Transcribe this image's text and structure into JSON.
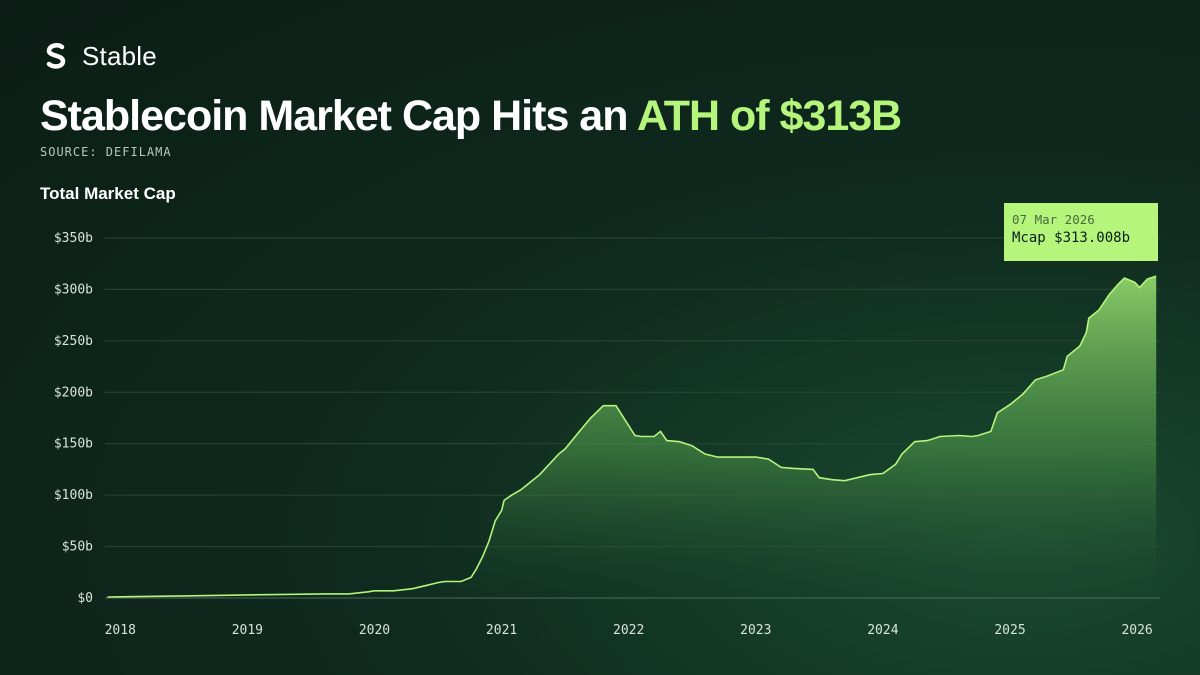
{
  "brand": {
    "name": "Stable",
    "icon": "stable-s-logo-icon"
  },
  "headline": {
    "prefix": "Stablecoin Market Cap Hits an ",
    "accent": "ATH of $313B"
  },
  "source": "SOURCE: DEFILAMA",
  "colors": {
    "accent": "#b5f57c",
    "background": "#0f2a1e",
    "line": "#b5f57c"
  },
  "tooltip": {
    "date": "07 Mar 2026",
    "value": "Mcap $313.008b"
  },
  "chart_data": {
    "type": "area",
    "title": "Total Market Cap",
    "xlabel": "",
    "ylabel": "",
    "ylim": [
      0,
      350
    ],
    "xlim": [
      2017.88,
      2026.18
    ],
    "y_ticks": [
      0,
      50,
      100,
      150,
      200,
      250,
      300,
      350
    ],
    "y_tick_labels": [
      "$0",
      "$50b",
      "$100b",
      "$150b",
      "$200b",
      "$250b",
      "$300b",
      "$350b"
    ],
    "x_ticks": [
      2018,
      2019,
      2020,
      2021,
      2022,
      2023,
      2024,
      2025,
      2026
    ],
    "x_tick_labels": [
      "2018",
      "2019",
      "2020",
      "2021",
      "2022",
      "2023",
      "2024",
      "2025",
      "2026"
    ],
    "grid": true,
    "series": [
      {
        "x": [
          2017.9,
          2018.5,
          2019.0,
          2019.6,
          2019.8,
          2019.95,
          2020.0,
          2020.15,
          2020.3,
          2020.4,
          2020.5,
          2020.55,
          2020.62,
          2020.68,
          2020.72,
          2020.76,
          2020.8,
          2020.85,
          2020.9,
          2020.95,
          2021.0,
          2021.02,
          2021.08,
          2021.15,
          2021.2,
          2021.3,
          2021.45,
          2021.5,
          2021.6,
          2021.7,
          2021.8,
          2021.9,
          2022.05,
          2022.1,
          2022.2,
          2022.25,
          2022.3,
          2022.4,
          2022.5,
          2022.6,
          2022.7,
          2022.8,
          2022.9,
          2023.0,
          2023.1,
          2023.2,
          2023.3,
          2023.45,
          2023.5,
          2023.6,
          2023.7,
          2023.9,
          2024.0,
          2024.1,
          2024.15,
          2024.25,
          2024.35,
          2024.45,
          2024.6,
          2024.7,
          2024.75,
          2024.85,
          2024.9,
          2025.0,
          2025.1,
          2025.2,
          2025.3,
          2025.42,
          2025.45,
          2025.55,
          2025.6,
          2025.62,
          2025.7,
          2025.78,
          2025.85,
          2025.9,
          2025.98,
          2026.02,
          2026.08,
          2026.15
        ],
        "y": [
          1,
          2,
          3,
          4,
          4,
          6,
          7,
          7,
          9,
          12,
          15,
          16,
          16,
          16,
          18,
          20,
          28,
          40,
          55,
          75,
          85,
          95,
          100,
          105,
          110,
          120,
          140,
          145,
          160,
          175,
          187,
          187,
          158,
          157,
          157,
          162,
          153,
          152,
          148,
          140,
          137,
          137,
          137,
          137,
          135,
          127,
          126,
          125,
          117,
          115,
          114,
          120,
          121,
          130,
          140,
          152,
          153,
          157,
          158,
          157,
          158,
          162,
          180,
          188,
          198,
          212,
          216,
          222,
          235,
          245,
          258,
          272,
          280,
          295,
          305,
          311,
          307,
          302,
          310,
          313
        ]
      }
    ]
  }
}
